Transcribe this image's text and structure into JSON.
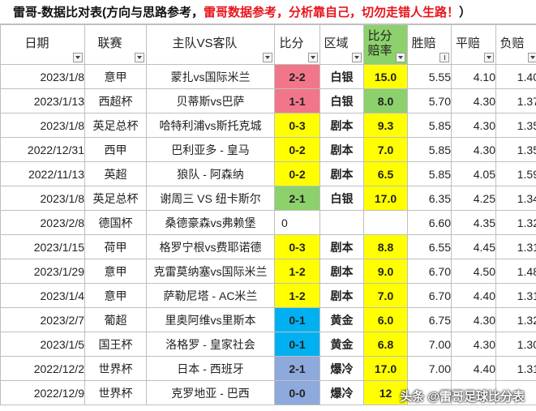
{
  "title": {
    "part1": "雷哥-数据比对表(方向与思路参考，",
    "part2": "雷哥数据参考，分析靠自己，切勿走错人生路！",
    "part3": "）"
  },
  "headers": [
    {
      "label": "日期",
      "filter": "dropdown"
    },
    {
      "label": "联赛",
      "filter": "dropdown"
    },
    {
      "label": "主队VS客队",
      "filter": "dropdown"
    },
    {
      "label": "比分",
      "filter": "dropdown"
    },
    {
      "label": "区域",
      "filter": "dropdown"
    },
    {
      "label": "比分\n赔率",
      "filter": "dropdown"
    },
    {
      "label": "胜赔",
      "filter": "sorted"
    },
    {
      "label": "平赔",
      "filter": "dropdown"
    },
    {
      "label": "负赔",
      "filter": "dropdown"
    }
  ],
  "colors": {
    "red_pink": "#f2768a",
    "green": "#8cd16b",
    "yellow": "#ffff00",
    "cyan": "#00b0f0",
    "purple": "#8ea9db",
    "text_red": "#e8141c"
  },
  "rows": [
    {
      "date": "2023/1/8",
      "league": "意甲",
      "teams": "蒙扎vs国际米兰",
      "score": "2-2",
      "score_bg": "red_pink",
      "zone": "白银",
      "odds": "15.0",
      "odds_bg": "yellow",
      "win": "5.55",
      "draw": "4.10",
      "loss": "1.40"
    },
    {
      "date": "2023/1/13",
      "league": "西超杯",
      "teams": "贝蒂斯vs巴萨",
      "score": "1-1",
      "score_bg": "red_pink",
      "zone": "白银",
      "odds": "8.0",
      "odds_bg": "green",
      "win": "5.70",
      "draw": "4.30",
      "loss": "1.37"
    },
    {
      "date": "2023/1/8",
      "league": "英足总杯",
      "teams": "哈特利浦vs斯托克城",
      "score": "0-3",
      "score_bg": "yellow",
      "zone": "剧本",
      "odds": "9.3",
      "odds_bg": "yellow",
      "win": "5.85",
      "draw": "4.30",
      "loss": "1.35"
    },
    {
      "date": "2022/12/31",
      "league": "西甲",
      "teams": "巴利亚多 - 皇马",
      "score": "0-2",
      "score_bg": "yellow",
      "zone": "剧本",
      "odds": "7.0",
      "odds_bg": "yellow",
      "win": "5.85",
      "draw": "4.30",
      "loss": "1.35"
    },
    {
      "date": "2022/11/13",
      "league": "英超",
      "teams": "狼队 - 阿森纳",
      "score": "0-2",
      "score_bg": "yellow",
      "zone": "剧本",
      "odds": "6.5",
      "odds_bg": "yellow",
      "win": "5.85",
      "draw": "4.05",
      "loss": "1.59"
    },
    {
      "date": "2023/1/8",
      "league": "英足总杯",
      "teams": "谢周三 VS 纽卡斯尔",
      "score": "2-1",
      "score_bg": "green",
      "zone": "白银",
      "odds": "17.0",
      "odds_bg": "yellow",
      "win": "6.35",
      "draw": "4.25",
      "loss": "1.34"
    },
    {
      "date": "2023/2/8",
      "league": "德国杯",
      "teams": "桑德豪森vs弗赖堡",
      "score": "0",
      "score_bg": "none",
      "zone": "",
      "odds": "",
      "odds_bg": "none",
      "win": "6.60",
      "draw": "4.35",
      "loss": "1.32"
    },
    {
      "date": "2023/1/15",
      "league": "荷甲",
      "teams": "格罗宁根vs费耶诺德",
      "score": "0-3",
      "score_bg": "yellow",
      "zone": "剧本",
      "odds": "8.8",
      "odds_bg": "yellow",
      "win": "6.55",
      "draw": "4.45",
      "loss": "1.31"
    },
    {
      "date": "2023/1/29",
      "league": "意甲",
      "teams": "克雷莫纳塞vs国际米兰",
      "score": "1-2",
      "score_bg": "yellow",
      "zone": "剧本",
      "odds": "9.0",
      "odds_bg": "yellow",
      "win": "6.70",
      "draw": "4.50",
      "loss": "1.48"
    },
    {
      "date": "2023/1/4",
      "league": "意甲",
      "teams": "萨勒尼塔 - AC米兰",
      "score": "1-2",
      "score_bg": "yellow",
      "zone": "剧本",
      "odds": "7.0",
      "odds_bg": "yellow",
      "win": "6.70",
      "draw": "4.40",
      "loss": "1.31"
    },
    {
      "date": "2023/2/7",
      "league": "葡超",
      "teams": "里奥阿维vs里斯本",
      "score": "0-1",
      "score_bg": "cyan",
      "zone": "黄金",
      "odds": "6.0",
      "odds_bg": "yellow",
      "win": "6.75",
      "draw": "4.30",
      "loss": "1.32"
    },
    {
      "date": "2023/1/5",
      "league": "国王杯",
      "teams": "洛格罗 - 皇家社会",
      "score": "0-1",
      "score_bg": "cyan",
      "zone": "黄金",
      "odds": "6.8",
      "odds_bg": "yellow",
      "win": "7.00",
      "draw": "4.30",
      "loss": "1.30"
    },
    {
      "date": "2022/12/2",
      "league": "世界杯",
      "teams": "日本 - 西班牙",
      "score": "2-1",
      "score_bg": "purple",
      "zone": "爆冷",
      "odds": "17.0",
      "odds_bg": "yellow",
      "win": "7.00",
      "draw": "4.40",
      "loss": "1.31"
    },
    {
      "date": "2022/12/9",
      "league": "世界杯",
      "teams": "克罗地亚 - 巴西",
      "score": "0-0",
      "score_bg": "purple",
      "zone": "爆冷",
      "odds": "12",
      "odds_bg": "yellow",
      "win": "",
      "draw": "",
      "loss": ""
    }
  ],
  "watermark": "头条 @雷哥足球比分表"
}
